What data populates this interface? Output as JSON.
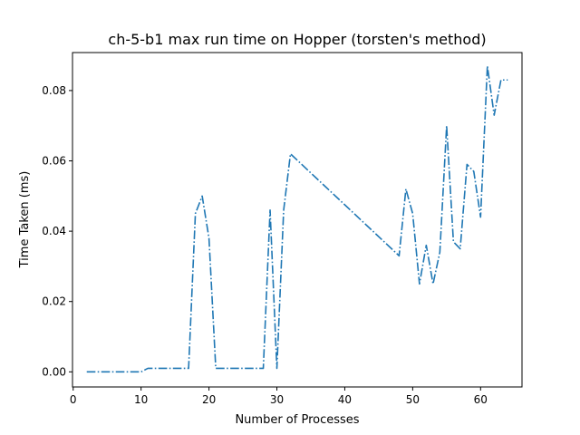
{
  "chart_data": {
    "type": "line",
    "title": "ch-5-b1 max run time on Hopper (torsten's method)",
    "xlabel": "Number of Processes",
    "ylabel": "Time Taken (ms)",
    "xlim": [
      -0.1,
      66.1
    ],
    "ylim": [
      -0.0043,
      0.0908
    ],
    "xticks": [
      0,
      10,
      20,
      30,
      40,
      50,
      60
    ],
    "yticks": [
      0.0,
      0.02,
      0.04,
      0.06,
      0.08
    ],
    "xtick_labels": [
      "0",
      "10",
      "20",
      "30",
      "40",
      "50",
      "60"
    ],
    "ytick_labels": [
      "0.00",
      "0.02",
      "0.04",
      "0.06",
      "0.08"
    ],
    "grid": false,
    "series": [
      {
        "color": "#1f77b4",
        "linestyle": "dash-dot",
        "x": [
          2,
          10,
          11,
          17,
          18,
          19,
          20,
          21,
          28,
          29,
          30,
          31,
          32,
          48,
          49,
          50,
          51,
          52,
          53,
          54,
          55,
          56,
          57,
          58,
          59,
          60,
          61,
          62,
          63,
          64
        ],
        "y": [
          0.0,
          0.0,
          0.001,
          0.001,
          0.045,
          0.05,
          0.038,
          0.001,
          0.001,
          0.046,
          0.001,
          0.046,
          0.062,
          0.033,
          0.052,
          0.045,
          0.025,
          0.036,
          0.025,
          0.034,
          0.07,
          0.037,
          0.035,
          0.059,
          0.057,
          0.044,
          0.087,
          0.073,
          0.083,
          0.083
        ]
      }
    ]
  }
}
